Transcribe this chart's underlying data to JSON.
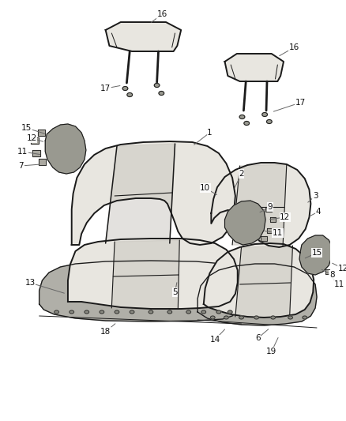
{
  "bg_color": "#ffffff",
  "line_color": "#1a1a1a",
  "fill_seat": "#e8e6e0",
  "fill_dark": "#c8c5be",
  "fill_bracket": "#999990",
  "fill_platform": "#b0afa8",
  "lw_main": 1.4,
  "lw_inner": 0.9,
  "lw_thin": 0.6,
  "fig_width": 4.38,
  "fig_height": 5.33,
  "dpi": 100
}
